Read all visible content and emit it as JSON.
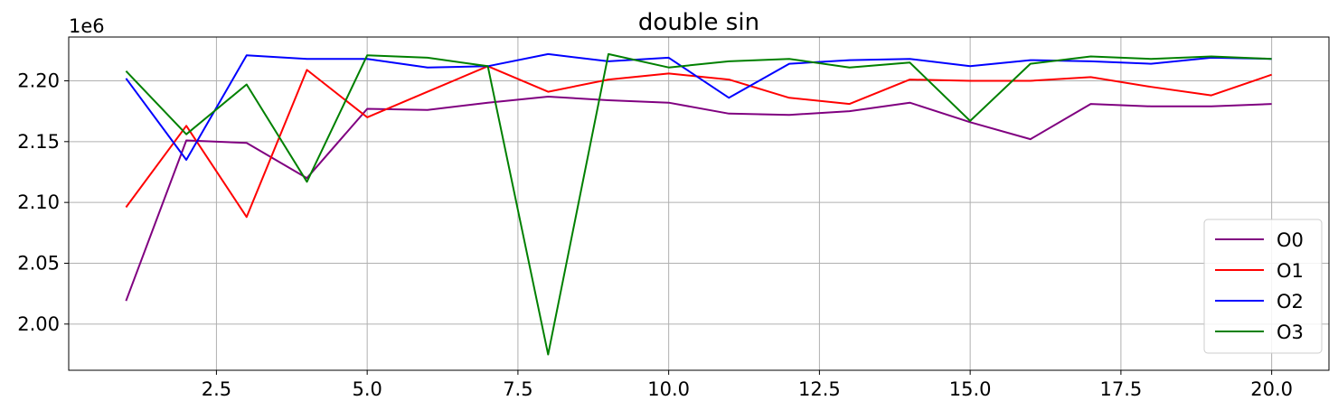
{
  "chart_data": {
    "type": "line",
    "title": "double sin",
    "xlabel": "",
    "ylabel": "",
    "offset_text": "1e6",
    "xlim": [
      0.05,
      20.95
    ],
    "ylim": [
      1.962,
      2.236
    ],
    "x_ticks": [
      2.5,
      5.0,
      7.5,
      10.0,
      12.5,
      15.0,
      17.5,
      20.0
    ],
    "x_tick_labels": [
      "2.5",
      "5.0",
      "7.5",
      "10.0",
      "12.5",
      "15.0",
      "17.5",
      "20.0"
    ],
    "y_ticks": [
      2.0,
      2.05,
      2.1,
      2.15,
      2.2
    ],
    "y_tick_labels": [
      "2.00",
      "2.05",
      "2.10",
      "2.15",
      "2.20"
    ],
    "grid": true,
    "legend_position": "bottom-right",
    "x": [
      1,
      2,
      3,
      4,
      5,
      6,
      7,
      8,
      9,
      10,
      11,
      12,
      13,
      14,
      15,
      16,
      17,
      18,
      19,
      20
    ],
    "series": [
      {
        "name": "O0",
        "color": "#800080",
        "values": [
          2.019,
          2.151,
          2.149,
          2.12,
          2.177,
          2.176,
          2.182,
          2.187,
          2.184,
          2.182,
          2.173,
          2.172,
          2.175,
          2.182,
          2.166,
          2.152,
          2.181,
          2.179,
          2.179,
          2.181
        ]
      },
      {
        "name": "O1",
        "color": "#ff0000",
        "values": [
          2.096,
          2.163,
          2.088,
          2.209,
          2.17,
          2.191,
          2.212,
          2.191,
          2.201,
          2.206,
          2.201,
          2.186,
          2.181,
          2.201,
          2.2,
          2.2,
          2.203,
          2.195,
          2.188,
          2.205
        ]
      },
      {
        "name": "O2",
        "color": "#0000ff",
        "values": [
          2.202,
          2.135,
          2.221,
          2.218,
          2.218,
          2.211,
          2.212,
          2.222,
          2.216,
          2.219,
          2.186,
          2.214,
          2.217,
          2.218,
          2.212,
          2.217,
          2.216,
          2.214,
          2.219,
          2.218
        ]
      },
      {
        "name": "O3",
        "color": "#008000",
        "values": [
          2.208,
          2.156,
          2.197,
          2.117,
          2.221,
          2.219,
          2.212,
          1.975,
          2.222,
          2.211,
          2.216,
          2.218,
          2.211,
          2.215,
          2.167,
          2.214,
          2.22,
          2.218,
          2.22,
          2.218
        ]
      }
    ]
  }
}
